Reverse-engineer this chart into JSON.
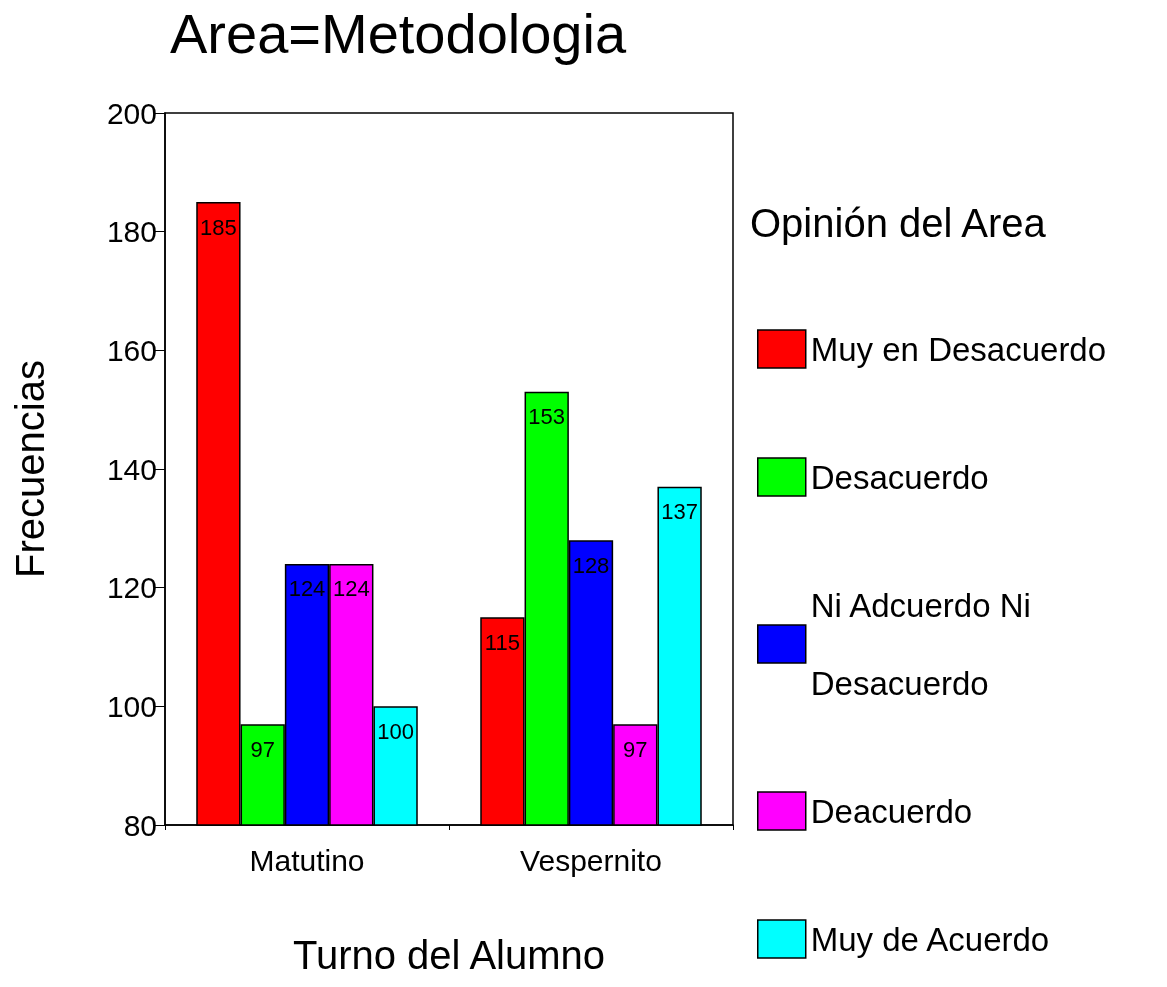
{
  "chart_data": {
    "type": "bar",
    "title": "Area=Metodologia",
    "xlabel": "Turno del Alumno",
    "ylabel": "Frecuencias",
    "legend_title": "Opinión del Area",
    "categories": [
      "Matutino",
      "Vespernito"
    ],
    "series": [
      {
        "name": "Muy en Desacuerdo",
        "color": "#ff0000",
        "values": [
          185,
          115
        ]
      },
      {
        "name": "Desacuerdo",
        "color": "#00ff00",
        "values": [
          97,
          153
        ]
      },
      {
        "name": "Ni Adcuerdo Ni Desacuerdo",
        "color": "#0000ff",
        "values": [
          124,
          128
        ]
      },
      {
        "name": "Deacuerdo",
        "color": "#ff00ff",
        "values": [
          124,
          97
        ]
      },
      {
        "name": "Muy de Acuerdo",
        "color": "#00ffff",
        "values": [
          100,
          137
        ]
      }
    ],
    "ylim": [
      80,
      200
    ],
    "yticks": [
      80,
      100,
      120,
      140,
      160,
      180,
      200
    ],
    "data_labels": true,
    "grid": false,
    "legend": "right"
  }
}
